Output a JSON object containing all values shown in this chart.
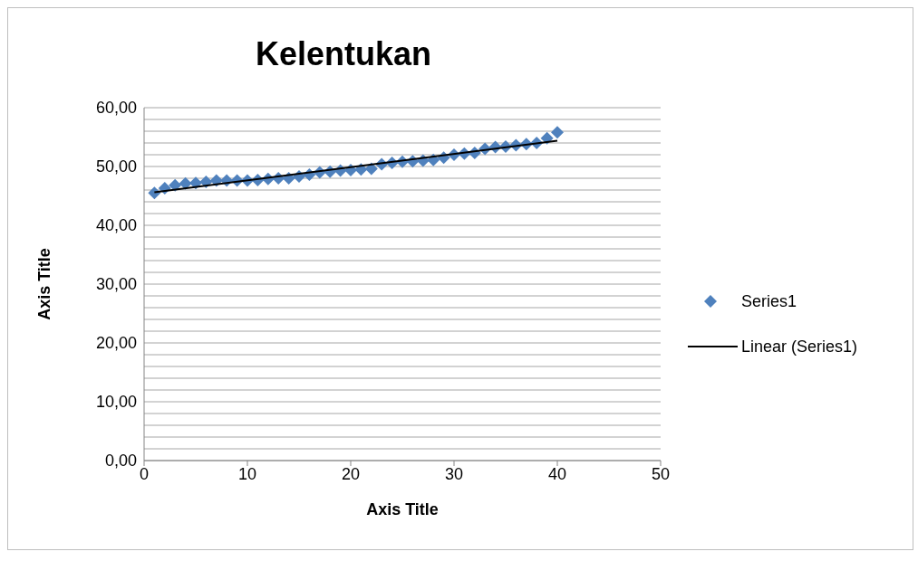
{
  "chart_data": {
    "type": "scatter",
    "title": "Kelentukan",
    "xlabel": "Axis Title",
    "ylabel": "Axis Title",
    "xlim": [
      0,
      50
    ],
    "xticks": [
      0,
      10,
      20,
      30,
      40,
      50
    ],
    "ylim": [
      0,
      60
    ],
    "yticks": [
      {
        "value": 0,
        "label": "0,00"
      },
      {
        "value": 2,
        "label": null
      },
      {
        "value": 4,
        "label": null
      },
      {
        "value": 6,
        "label": null
      },
      {
        "value": 8,
        "label": null
      },
      {
        "value": 10,
        "label": "10,00"
      },
      {
        "value": 12,
        "label": null
      },
      {
        "value": 14,
        "label": null
      },
      {
        "value": 16,
        "label": null
      },
      {
        "value": 18,
        "label": null
      },
      {
        "value": 20,
        "label": "20,00"
      },
      {
        "value": 22,
        "label": null
      },
      {
        "value": 24,
        "label": null
      },
      {
        "value": 26,
        "label": null
      },
      {
        "value": 28,
        "label": null
      },
      {
        "value": 30,
        "label": "30,00"
      },
      {
        "value": 32,
        "label": null
      },
      {
        "value": 34,
        "label": null
      },
      {
        "value": 36,
        "label": null
      },
      {
        "value": 38,
        "label": null
      },
      {
        "value": 40,
        "label": "40,00"
      },
      {
        "value": 42,
        "label": null
      },
      {
        "value": 44,
        "label": null
      },
      {
        "value": 46,
        "label": null
      },
      {
        "value": 48,
        "label": null
      },
      {
        "value": 50,
        "label": "50,00"
      },
      {
        "value": 52,
        "label": null
      },
      {
        "value": 54,
        "label": null
      },
      {
        "value": 56,
        "label": null
      },
      {
        "value": 58,
        "label": null
      },
      {
        "value": 60,
        "label": "60,00"
      }
    ],
    "grid": "y",
    "legend": "right",
    "series": [
      {
        "name": "Series1",
        "marker": "diamond",
        "color": "#4f81bd",
        "x": [
          1,
          2,
          3,
          4,
          5,
          6,
          7,
          8,
          9,
          10,
          11,
          12,
          13,
          14,
          15,
          16,
          17,
          18,
          19,
          20,
          21,
          22,
          23,
          24,
          25,
          26,
          27,
          28,
          29,
          30,
          31,
          32,
          33,
          34,
          35,
          36,
          37,
          38,
          39,
          40
        ],
        "values": [
          45.5,
          46.3,
          46.8,
          47.1,
          47.2,
          47.4,
          47.6,
          47.6,
          47.6,
          47.6,
          47.7,
          47.9,
          48.0,
          48.0,
          48.3,
          48.6,
          49.0,
          49.1,
          49.3,
          49.4,
          49.5,
          49.6,
          50.4,
          50.6,
          50.8,
          50.9,
          51.0,
          51.1,
          51.5,
          52.0,
          52.2,
          52.3,
          53.0,
          53.3,
          53.4,
          53.6,
          53.8,
          54.0,
          54.8,
          55.8
        ]
      },
      {
        "name": "Linear (Series1)",
        "type": "line",
        "marker": "none",
        "color": "#000000",
        "x": [
          1,
          40
        ],
        "values": [
          45.6,
          54.4
        ]
      }
    ]
  }
}
